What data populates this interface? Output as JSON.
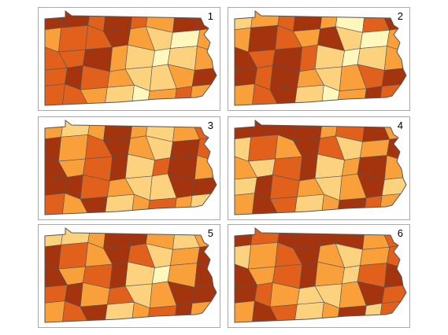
{
  "figure": {
    "panels": [
      {
        "label": "1",
        "palette_order": [
          4,
          4,
          3,
          4,
          3,
          2,
          4,
          4,
          2,
          3,
          3,
          4,
          2,
          1,
          0,
          2,
          3,
          3,
          4,
          2,
          1,
          0,
          1,
          2,
          3,
          4,
          3,
          2,
          1,
          1,
          2,
          4,
          3,
          3,
          2,
          1,
          0,
          2,
          3,
          2
        ]
      },
      {
        "label": "2",
        "palette_order": [
          1,
          2,
          3,
          4,
          2,
          0,
          3,
          4,
          2,
          4,
          3,
          2,
          4,
          1,
          0,
          2,
          4,
          3,
          4,
          3,
          1,
          0,
          1,
          2,
          4,
          3,
          4,
          2,
          1,
          2,
          3,
          4,
          2,
          3,
          4,
          1,
          0,
          2,
          4,
          3
        ]
      },
      {
        "label": "3",
        "palette_order": [
          2,
          1,
          2,
          4,
          2,
          1,
          2,
          3,
          4,
          2,
          3,
          4,
          2,
          1,
          4,
          3,
          4,
          2,
          3,
          4,
          1,
          3,
          4,
          2,
          4,
          4,
          3,
          2,
          1,
          1,
          4,
          4,
          3,
          2,
          4,
          1,
          2,
          3,
          2,
          1
        ]
      },
      {
        "label": "4",
        "palette_order": [
          4,
          4,
          4,
          4,
          2,
          3,
          4,
          2,
          1,
          3,
          2,
          4,
          3,
          1,
          2,
          4,
          2,
          1,
          3,
          4,
          1,
          2,
          4,
          2,
          1,
          4,
          3,
          2,
          1,
          2,
          4,
          1,
          2,
          4,
          3,
          1,
          2,
          4,
          3,
          2
        ]
      },
      {
        "label": "5",
        "palette_order": [
          1,
          1,
          2,
          4,
          4,
          2,
          1,
          2,
          4,
          3,
          2,
          4,
          3,
          1,
          2,
          4,
          4,
          2,
          3,
          4,
          1,
          0,
          2,
          4,
          3,
          4,
          2,
          3,
          1,
          2,
          4,
          4,
          2,
          3,
          4,
          1,
          2,
          3,
          4,
          2
        ]
      },
      {
        "label": "6",
        "palette_order": [
          4,
          3,
          4,
          4,
          4,
          4,
          2,
          3,
          1,
          2,
          3,
          4,
          2,
          1,
          2,
          3,
          4,
          2,
          3,
          4,
          2,
          1,
          3,
          4,
          4,
          3,
          2,
          1,
          1,
          2,
          4,
          3,
          2,
          4,
          3,
          1,
          2,
          4,
          1,
          3
        ]
      }
    ],
    "palette": [
      "#fff7bc",
      "#fdd27f",
      "#f9a03b",
      "#e0601c",
      "#a3340e"
    ],
    "border_color": "#555555"
  }
}
